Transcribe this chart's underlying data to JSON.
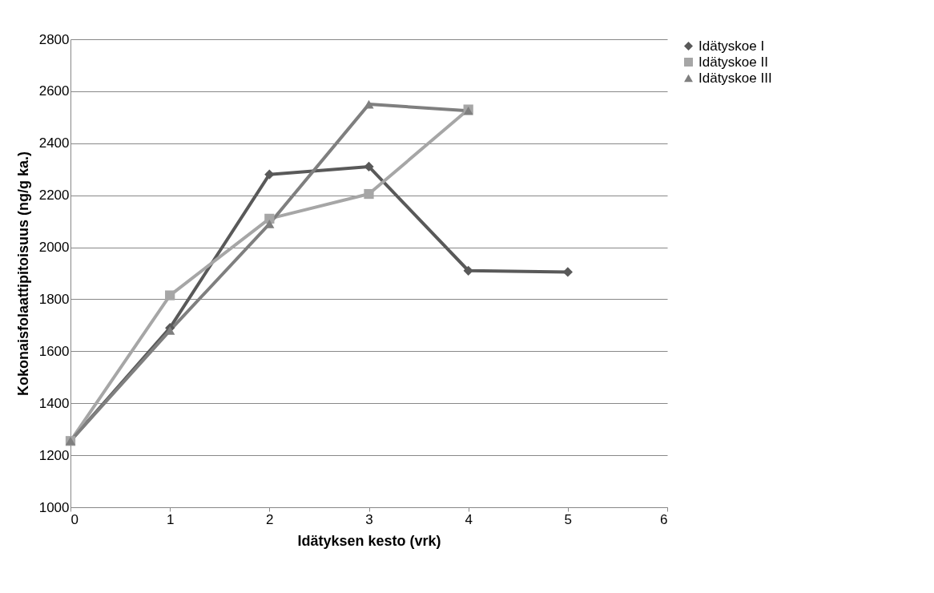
{
  "chart_data": {
    "type": "line",
    "xlabel": "Idätyksen kesto (vrk)",
    "ylabel": "Kokonaisfolaattipitoisuus (ng/g ka.)",
    "x": [
      0,
      1,
      2,
      3,
      4,
      5
    ],
    "series": [
      {
        "name": "Idätyskoe I",
        "color": "#595959",
        "marker": "diamond",
        "values": [
          1255,
          1690,
          2280,
          2310,
          1910,
          1905
        ]
      },
      {
        "name": "Idätyskoe II",
        "color": "#a6a6a6",
        "marker": "square",
        "values": [
          1255,
          1815,
          2110,
          2205,
          2530,
          null
        ]
      },
      {
        "name": "Idätyskoe III",
        "color": "#7f7f7f",
        "marker": "triangle",
        "values": [
          1255,
          1680,
          2090,
          2550,
          2525,
          null
        ]
      }
    ],
    "xlim": [
      0,
      6
    ],
    "xticks": [
      0,
      1,
      2,
      3,
      4,
      5,
      6
    ],
    "ylim": [
      1000,
      2800
    ],
    "yticks": [
      1000,
      1200,
      1400,
      1600,
      1800,
      2000,
      2200,
      2400,
      2600,
      2800
    ],
    "grid": "y",
    "legend": "right",
    "line_style": "solid"
  }
}
